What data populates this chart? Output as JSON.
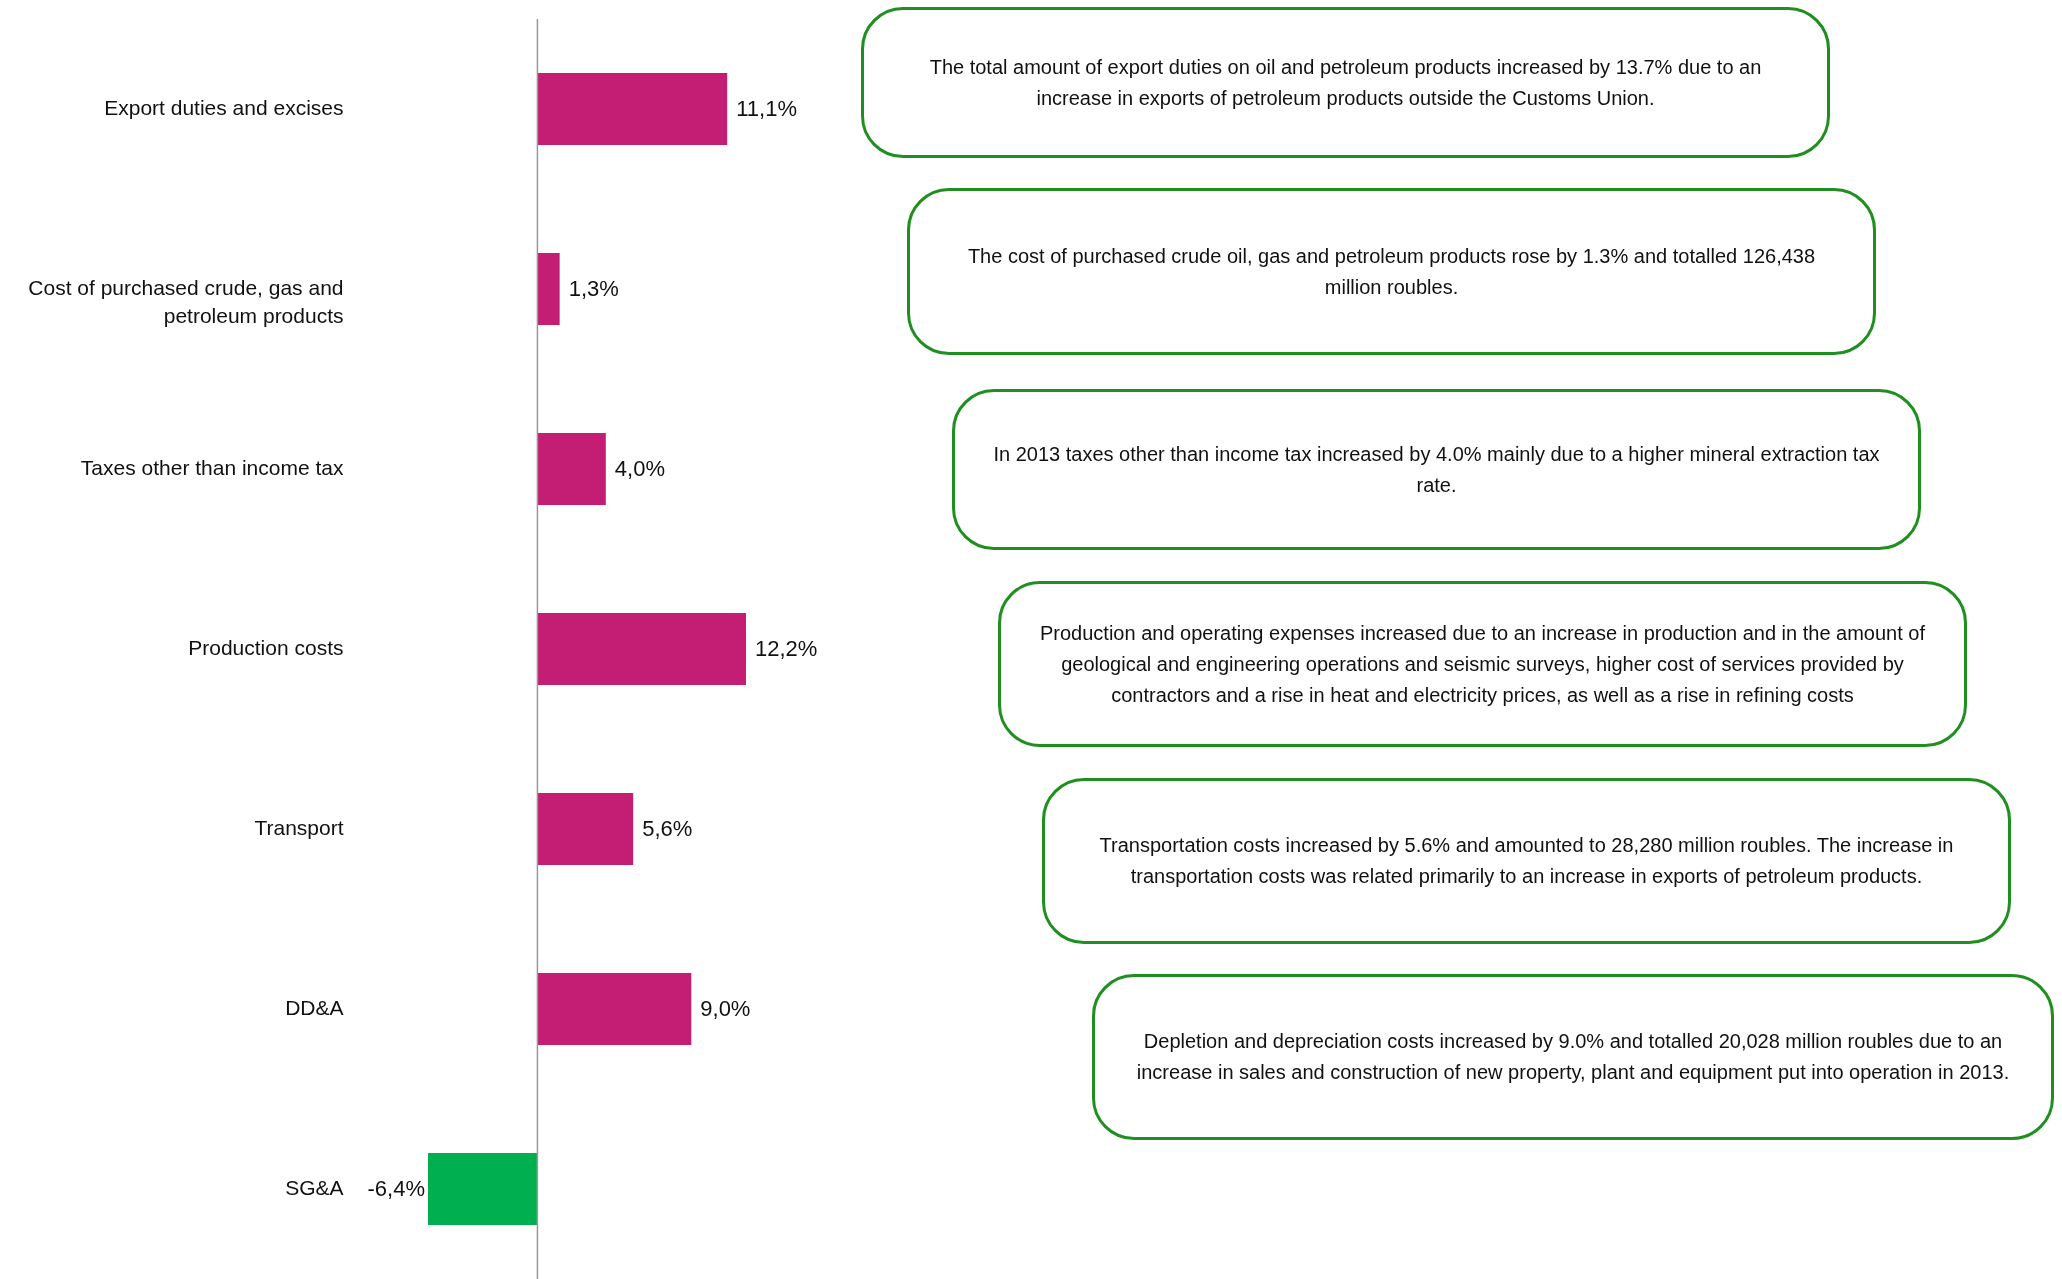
{
  "chart_data": {
    "type": "bar",
    "orientation": "horizontal",
    "categories": [
      "Export duties and excises",
      "Cost of purchased crude, gas and petroleum products",
      "Taxes other than income tax",
      "Production costs",
      "Transport",
      "DD&A",
      "SG&A"
    ],
    "values": [
      11.1,
      1.3,
      4.0,
      12.2,
      5.6,
      9.0,
      -6.4
    ],
    "colors": [
      "#c31e73",
      "#c31e73",
      "#c31e73",
      "#c31e73",
      "#c31e73",
      "#c31e73",
      "#00b050"
    ],
    "value_labels": [
      "11,1%",
      "1,3%",
      "4,0%",
      "12,2%",
      "5,6%",
      "9,0%",
      "-6,4%"
    ],
    "annotations": [
      "The total amount of export duties on oil and petroleum products increased by 13.7% due to an increase in exports of petroleum products outside the Customs Union.",
      "The cost of purchased crude oil, gas and petroleum products rose by 1.3% and totalled 126,438 million roubles.",
      "In 2013 taxes other than income tax increased by 4.0% mainly due to a higher mineral extraction tax rate.",
      "Production and operating expenses increased due to an increase in production and in the amount of geological and engineering operations and seismic surveys, higher cost of services provided by contractors and a rise in heat and electricity prices, as well as a rise in refining costs",
      "Transportation costs increased by 5.6% and amounted to 28,280 million roubles. The increase in transportation costs was related primarily to an increase in exports of petroleum products.",
      "Depletion and depreciation costs increased by 9.0% and totalled 20,028 million roubles due to an increase in sales and construction of new property, plant and equipment put into operation in 2013."
    ]
  }
}
